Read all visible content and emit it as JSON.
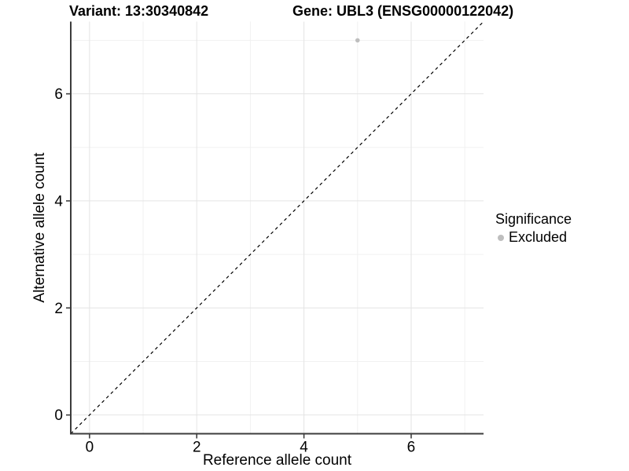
{
  "titles": {
    "variant": "Variant: 13:30340842",
    "gene": "Gene: UBL3 (ENSG00000122042)"
  },
  "chart_data": {
    "type": "scatter",
    "title_left": "Variant: 13:30340842",
    "title_right": "Gene: UBL3 (ENSG00000122042)",
    "xlabel": "Reference allele count",
    "ylabel": "Alternative allele count",
    "xlim": [
      -0.35,
      7.35
    ],
    "ylim": [
      -0.35,
      7.35
    ],
    "x_ticks": [
      0,
      2,
      4,
      6
    ],
    "y_ticks": [
      0,
      2,
      4,
      6
    ],
    "x_minor_ticks": [
      1,
      3,
      5,
      7
    ],
    "y_minor_ticks": [
      1,
      3,
      5,
      7
    ],
    "grid": true,
    "legend_position": "right",
    "series": [
      {
        "name": "Excluded",
        "color": "#bebebe",
        "points": [
          {
            "x": 5,
            "y": 7
          }
        ]
      }
    ],
    "reference_line": {
      "kind": "identity",
      "style": "dashed",
      "color": "#000000",
      "x1": -0.35,
      "y1": -0.35,
      "x2": 7.35,
      "y2": 7.35
    },
    "legend": {
      "title": "Significance",
      "entries": [
        {
          "label": "Excluded",
          "color": "#bebebe"
        }
      ]
    }
  },
  "colors": {
    "background": "#ffffff",
    "major_grid": "#e4e4e4",
    "minor_grid": "#f1f1f1",
    "axis_line": "#3c3c3c",
    "tick_mark": "#333333",
    "text": "#000000",
    "point": "#bebebe"
  }
}
